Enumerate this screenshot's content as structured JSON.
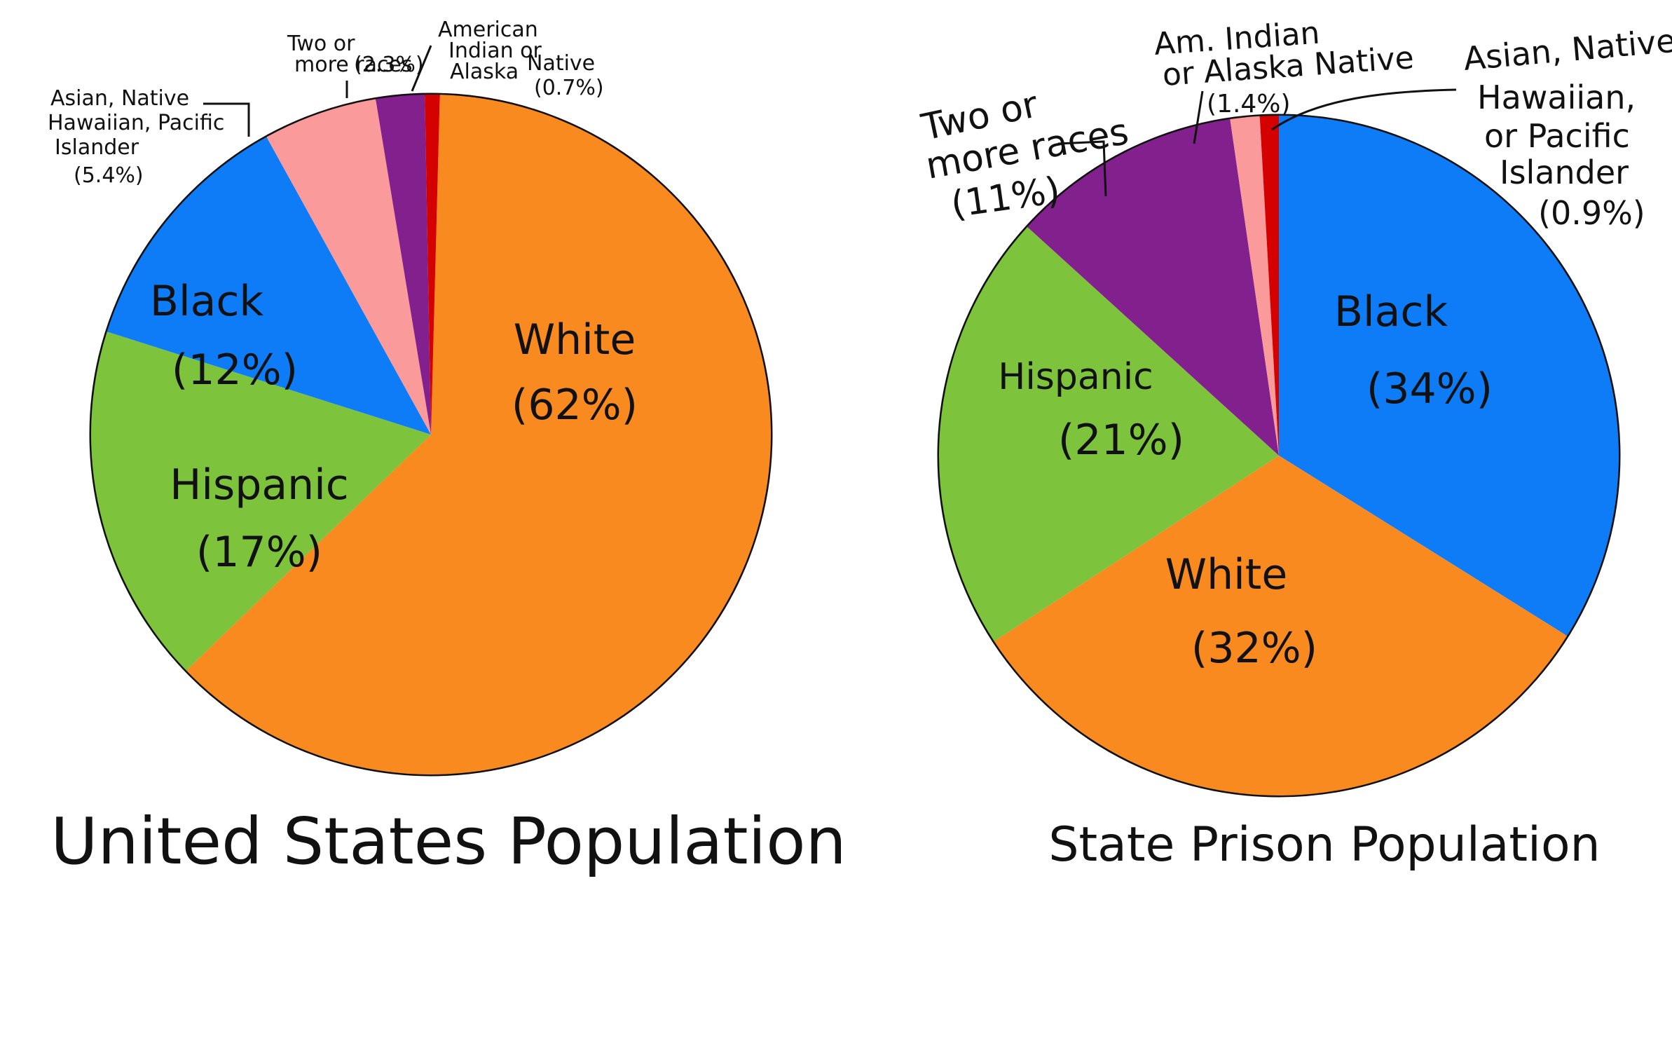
{
  "chart_data": [
    {
      "type": "pie",
      "title": "United States Population",
      "slices": [
        {
          "label": "White",
          "value_text": "(62%)",
          "value": 62,
          "color": "#F98A20"
        },
        {
          "label": "Hispanic",
          "value_text": "(17%)",
          "value": 17,
          "color": "#7DC33B"
        },
        {
          "label": "Black",
          "value_text": "(12%)",
          "value": 12,
          "color": "#0E7CF6"
        },
        {
          "label": "Asian, Native Hawaiian, Pacific Islander",
          "value_text": "(5.4%)",
          "value": 5.4,
          "color": "#FB9A9A"
        },
        {
          "label": "Two or more races",
          "value_text": "(2.3%)",
          "value": 2.3,
          "color": "#82208E"
        },
        {
          "label": "American Indian or Alaska Native",
          "value_text": "(0.7%)",
          "value": 0.7,
          "color": "#D50000"
        }
      ]
    },
    {
      "type": "pie",
      "title": "State Prison Population",
      "slices": [
        {
          "label": "Black",
          "value_text": "(34%)",
          "value": 34,
          "color": "#0E7CF6"
        },
        {
          "label": "White",
          "value_text": "(32%)",
          "value": 32,
          "color": "#F98A20"
        },
        {
          "label": "Hispanic",
          "value_text": "(21%)",
          "value": 21,
          "color": "#7DC33B"
        },
        {
          "label": "Two or more races",
          "value_text": "(11%)",
          "value": 11,
          "color": "#82208E"
        },
        {
          "label": "Am. Indian or Alaska Native",
          "value_text": "(1.4%)",
          "value": 1.4,
          "color": "#FB9A9A"
        },
        {
          "label": "Asian, Native Hawaiian, or Pacific Islander",
          "value_text": "(0.9%)",
          "value": 0.9,
          "color": "#D50000"
        }
      ]
    }
  ]
}
